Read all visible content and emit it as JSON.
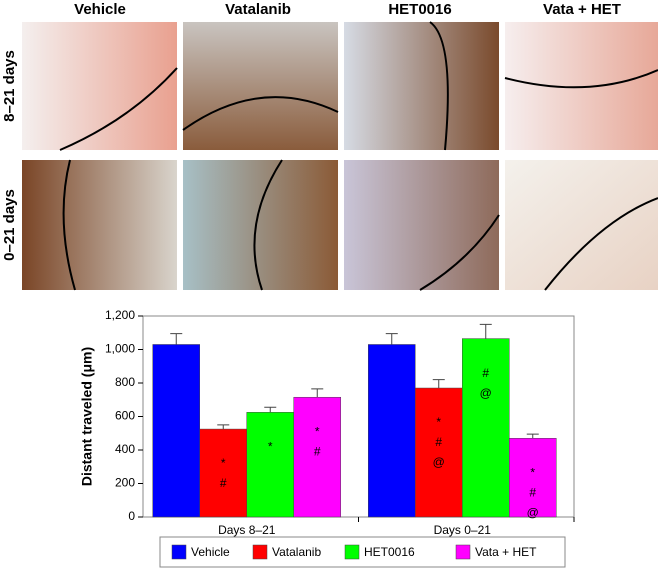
{
  "column_headers": [
    "Vehicle",
    "Vatalanib",
    "HET0016",
    "Vata + HET"
  ],
  "row_labels": [
    "8–21 days",
    "0–21 days"
  ],
  "chart_data": {
    "type": "bar",
    "ylabel": "Distant traveled (μm)",
    "categories": [
      "Days 8–21",
      "Days 0–21"
    ],
    "ylim": [
      0,
      1200
    ],
    "yticks": [
      0,
      200,
      400,
      600,
      800,
      {
        "value": 1000,
        "label": "1,000"
      },
      {
        "value": 1200,
        "label": "1,200"
      }
    ],
    "legend": "bottom",
    "series": [
      {
        "name": "Vehicle",
        "color": "#0000ff",
        "values": [
          1030,
          1030
        ],
        "errors": [
          65,
          65
        ],
        "annotations": [
          [],
          []
        ]
      },
      {
        "name": "Vatalanib",
        "color": "#ff0000",
        "values": [
          525,
          770
        ],
        "errors": [
          25,
          50
        ],
        "annotations": [
          [
            "*",
            "#"
          ],
          [
            "*",
            "#",
            "@"
          ]
        ]
      },
      {
        "name": "HET0016",
        "color": "#00ff00",
        "values": [
          625,
          1065
        ],
        "errors": [
          30,
          85
        ],
        "annotations": [
          [
            "*"
          ],
          [
            "#",
            "@"
          ]
        ]
      },
      {
        "name": "Vata + HET",
        "color": "#ff00ff",
        "values": [
          715,
          470
        ],
        "errors": [
          50,
          25
        ],
        "annotations": [
          [
            "*",
            "#"
          ],
          [
            "*",
            "#",
            "@"
          ]
        ]
      }
    ]
  }
}
